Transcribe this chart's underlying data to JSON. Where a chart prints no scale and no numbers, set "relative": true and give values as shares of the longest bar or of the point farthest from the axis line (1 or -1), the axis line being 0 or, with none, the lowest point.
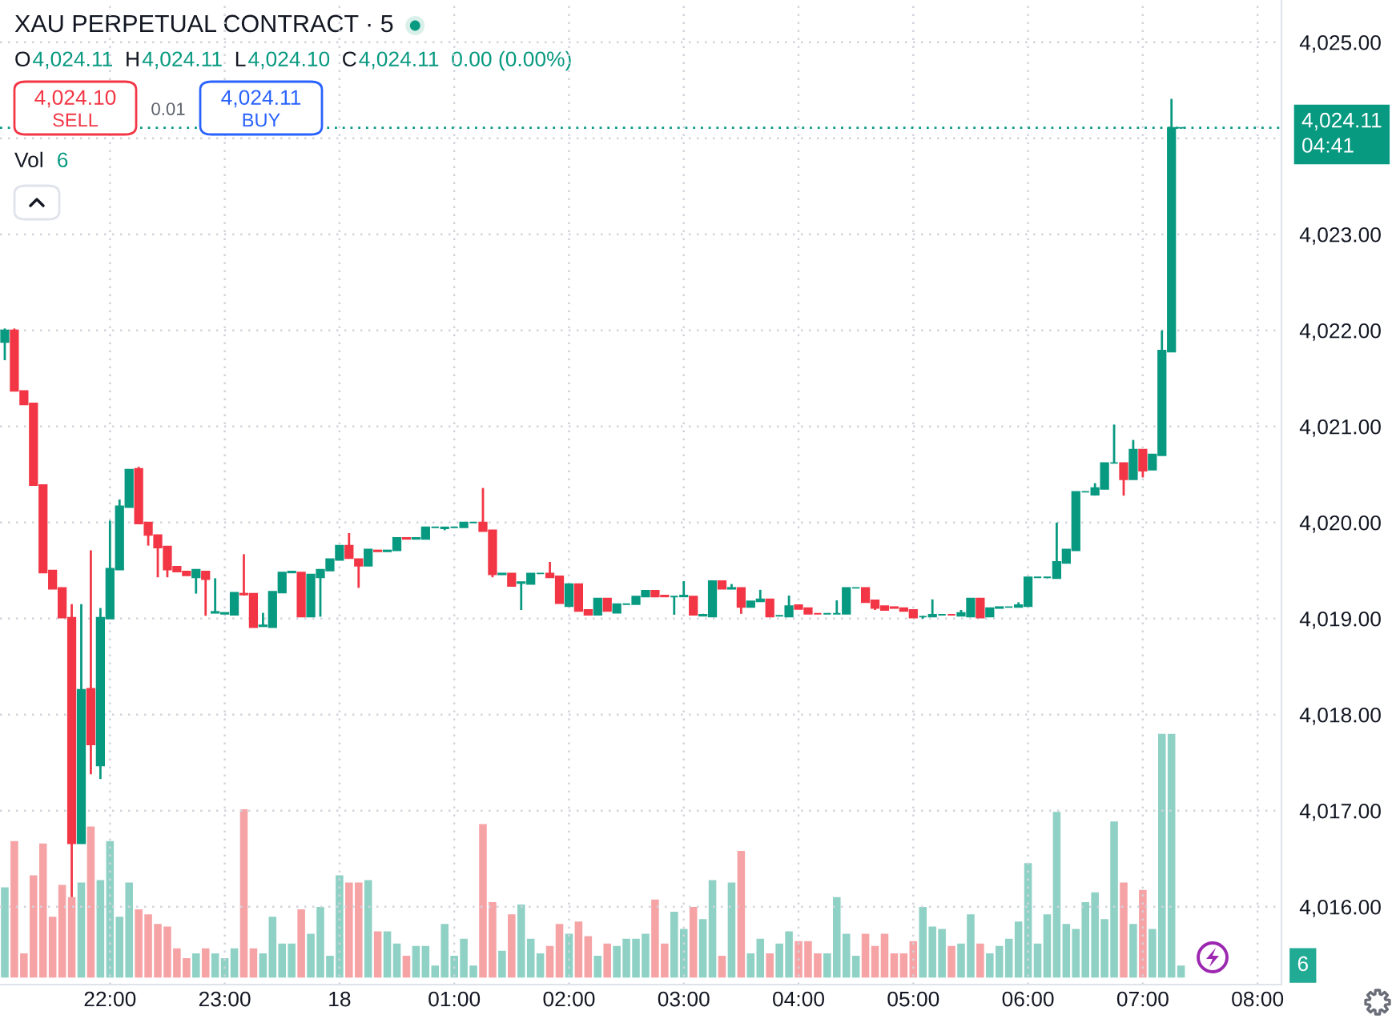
{
  "chart_data": [
    {
      "type": "candlestick",
      "title": "XAU PERPETUAL CONTRACT · 5",
      "categories": [
        null,
        null,
        null,
        null,
        null,
        null,
        null,
        null,
        null,
        null,
        null,
        "22:00",
        null,
        null,
        null,
        null,
        null,
        null,
        null,
        null,
        null,
        null,
        null,
        "23:00",
        null,
        null,
        null,
        null,
        null,
        null,
        null,
        null,
        null,
        null,
        null,
        "18",
        null,
        null,
        null,
        null,
        null,
        null,
        null,
        null,
        null,
        null,
        null,
        "01:00",
        null,
        null,
        null,
        null,
        null,
        null,
        null,
        null,
        null,
        null,
        null,
        "02:00",
        null,
        null,
        null,
        null,
        null,
        null,
        null,
        null,
        null,
        null,
        null,
        "03:00",
        null,
        null,
        null,
        null,
        null,
        null,
        null,
        null,
        null,
        null,
        null,
        "04:00",
        null,
        null,
        null,
        null,
        null,
        null,
        null,
        null,
        null,
        null,
        null,
        "05:00",
        null,
        null,
        null,
        null,
        null,
        null,
        null,
        null,
        null,
        null,
        null,
        "06:00",
        null,
        null,
        null,
        null,
        null,
        null,
        null,
        null,
        null,
        null,
        null,
        "07:00",
        null,
        null,
        null,
        null,
        null,
        null,
        null,
        null,
        null,
        null,
        null,
        "08:00",
        null,
        null
      ],
      "ohlc": [
        [
          4021.88,
          4022.02,
          4021.69,
          4022.0
        ],
        [
          4022.0,
          4022.02,
          4021.37,
          4021.37
        ],
        [
          4021.37,
          4021.37,
          4021.23,
          4021.23
        ],
        [
          4021.24,
          4021.24,
          4020.39,
          4020.39
        ],
        [
          4020.39,
          4020.39,
          4019.48,
          4019.48
        ],
        [
          4019.5,
          4019.5,
          4019.31,
          4019.31
        ],
        [
          4019.32,
          4019.32,
          4019.01,
          4019.01
        ],
        [
          4019.01,
          4019.15,
          4016.1,
          4016.66
        ],
        [
          4016.66,
          4019.15,
          4016.66,
          4018.26
        ],
        [
          4018.27,
          4019.71,
          4017.38,
          4017.69
        ],
        [
          4017.47,
          4019.11,
          4017.33,
          4019.01
        ],
        [
          4019.0,
          4020.02,
          4019.0,
          4019.52
        ],
        [
          4019.51,
          4020.24,
          4019.51,
          4020.17
        ],
        [
          4020.16,
          4020.55,
          4020.16,
          4020.55
        ],
        [
          4020.56,
          4020.58,
          4019.99,
          4019.99
        ],
        [
          4020.0,
          4020.0,
          4019.76,
          4019.87
        ],
        [
          4019.87,
          4019.87,
          4019.43,
          4019.74
        ],
        [
          4019.75,
          4019.75,
          4019.43,
          4019.51
        ],
        [
          4019.54,
          4019.54,
          4019.49,
          4019.49
        ],
        [
          4019.49,
          4019.49,
          4019.45,
          4019.45
        ],
        [
          4019.43,
          4019.51,
          4019.26,
          4019.51
        ],
        [
          4019.49,
          4019.49,
          4019.03,
          4019.41
        ],
        [
          4019.06,
          4019.42,
          4019.06,
          4019.07
        ],
        [
          4019.05,
          4019.06,
          4019.05,
          4019.06
        ],
        [
          4019.04,
          4019.27,
          4019.04,
          4019.27
        ],
        [
          4019.26,
          4019.67,
          4019.24,
          4019.25
        ],
        [
          4019.26,
          4019.26,
          4018.91,
          4018.91
        ],
        [
          4018.92,
          4019.06,
          4018.92,
          4018.93
        ],
        [
          4018.91,
          4019.28,
          4018.91,
          4019.28
        ],
        [
          4019.27,
          4019.48,
          4019.27,
          4019.48
        ],
        [
          4019.48,
          4019.49,
          4019.48,
          4019.49
        ],
        [
          4019.48,
          4019.48,
          4019.02,
          4019.02
        ],
        [
          4019.02,
          4019.46,
          4019.02,
          4019.46
        ],
        [
          4019.43,
          4019.51,
          4019.02,
          4019.51
        ],
        [
          4019.5,
          4019.62,
          4019.5,
          4019.62
        ],
        [
          4019.61,
          4019.76,
          4019.61,
          4019.76
        ],
        [
          4019.76,
          4019.89,
          4019.63,
          4019.63
        ],
        [
          4019.62,
          4019.62,
          4019.32,
          4019.55
        ],
        [
          4019.55,
          4019.72,
          4019.55,
          4019.72
        ],
        [
          4019.71,
          4019.71,
          4019.7,
          4019.7
        ],
        [
          4019.7,
          4019.71,
          4019.7,
          4019.71
        ],
        [
          4019.71,
          4019.84,
          4019.71,
          4019.84
        ],
        [
          4019.84,
          4019.84,
          4019.83,
          4019.83
        ],
        [
          4019.83,
          4019.84,
          4019.83,
          4019.84
        ],
        [
          4019.83,
          4019.95,
          4019.83,
          4019.95
        ],
        [
          4019.95,
          4019.95,
          4019.95,
          4019.95
        ],
        [
          4019.94,
          4019.95,
          4019.92,
          4019.95
        ],
        [
          4019.95,
          4019.95,
          4019.95,
          4019.95
        ],
        [
          4019.95,
          4020.0,
          4019.95,
          4020.0
        ],
        [
          4020.0,
          4020.0,
          4020.0,
          4020.0
        ],
        [
          4020.0,
          4020.36,
          4019.91,
          4019.91
        ],
        [
          4019.92,
          4019.92,
          4019.43,
          4019.46
        ],
        [
          4019.46,
          4019.47,
          4019.46,
          4019.47
        ],
        [
          4019.47,
          4019.47,
          4019.34,
          4019.34
        ],
        [
          4019.37,
          4019.38,
          4019.09,
          4019.38
        ],
        [
          4019.36,
          4019.47,
          4019.36,
          4019.47
        ],
        [
          4019.47,
          4019.47,
          4019.47,
          4019.47
        ],
        [
          4019.47,
          4019.59,
          4019.43,
          4019.43
        ],
        [
          4019.44,
          4019.44,
          4019.16,
          4019.16
        ],
        [
          4019.13,
          4019.36,
          4019.13,
          4019.36
        ],
        [
          4019.36,
          4019.36,
          4019.08,
          4019.08
        ],
        [
          4019.09,
          4019.09,
          4019.04,
          4019.04
        ],
        [
          4019.04,
          4019.21,
          4019.04,
          4019.21
        ],
        [
          4019.21,
          4019.21,
          4019.08,
          4019.08
        ],
        [
          4019.06,
          4019.15,
          4019.06,
          4019.15
        ],
        [
          4019.15,
          4019.15,
          4019.15,
          4019.15
        ],
        [
          4019.15,
          4019.23,
          4019.15,
          4019.23
        ],
        [
          4019.23,
          4019.29,
          4019.23,
          4019.29
        ],
        [
          4019.29,
          4019.29,
          4019.23,
          4019.23
        ],
        [
          4019.24,
          4019.24,
          4019.23,
          4019.23
        ],
        [
          4019.23,
          4019.23,
          4019.04,
          4019.23
        ],
        [
          4019.23,
          4019.39,
          4019.23,
          4019.24
        ],
        [
          4019.23,
          4019.23,
          4019.04,
          4019.04
        ],
        [
          4019.03,
          4019.05,
          4019.03,
          4019.04
        ],
        [
          4019.02,
          4019.39,
          4019.02,
          4019.39
        ],
        [
          4019.39,
          4019.39,
          4019.31,
          4019.31
        ],
        [
          4019.31,
          4019.36,
          4019.31,
          4019.32
        ],
        [
          4019.32,
          4019.32,
          4019.05,
          4019.12
        ],
        [
          4019.12,
          4019.18,
          4019.12,
          4019.18
        ],
        [
          4019.18,
          4019.3,
          4019.18,
          4019.2
        ],
        [
          4019.2,
          4019.2,
          4019.02,
          4019.02
        ],
        [
          4019.03,
          4019.03,
          4019.03,
          4019.03
        ],
        [
          4019.02,
          4019.24,
          4019.02,
          4019.13
        ],
        [
          4019.14,
          4019.14,
          4019.1,
          4019.1
        ],
        [
          4019.11,
          4019.11,
          4019.05,
          4019.05
        ],
        [
          4019.05,
          4019.05,
          4019.05,
          4019.05
        ],
        [
          4019.05,
          4019.05,
          4019.05,
          4019.05
        ],
        [
          4019.05,
          4019.19,
          4019.05,
          4019.05
        ],
        [
          4019.05,
          4019.32,
          4019.05,
          4019.32
        ],
        [
          4019.32,
          4019.32,
          4019.32,
          4019.32
        ],
        [
          4019.32,
          4019.32,
          4019.17,
          4019.17
        ],
        [
          4019.19,
          4019.19,
          4019.09,
          4019.11
        ],
        [
          4019.13,
          4019.13,
          4019.09,
          4019.09
        ],
        [
          4019.12,
          4019.12,
          4019.11,
          4019.11
        ],
        [
          4019.11,
          4019.11,
          4019.08,
          4019.08
        ],
        [
          4019.09,
          4019.09,
          4019.01,
          4019.01
        ],
        [
          4019.02,
          4019.03,
          4019.0,
          4019.02
        ],
        [
          4019.02,
          4019.2,
          4019.02,
          4019.04
        ],
        [
          4019.04,
          4019.04,
          4019.04,
          4019.04
        ],
        [
          4019.04,
          4019.04,
          4019.04,
          4019.04
        ],
        [
          4019.03,
          4019.09,
          4019.03,
          4019.06
        ],
        [
          4019.02,
          4019.21,
          4019.02,
          4019.21
        ],
        [
          4019.21,
          4019.21,
          4019.01,
          4019.01
        ],
        [
          4019.02,
          4019.11,
          4019.02,
          4019.11
        ],
        [
          4019.11,
          4019.12,
          4019.11,
          4019.12
        ],
        [
          4019.12,
          4019.12,
          4019.12,
          4019.12
        ],
        [
          4019.12,
          4019.17,
          4019.12,
          4019.14
        ],
        [
          4019.13,
          4019.43,
          4019.13,
          4019.43
        ],
        [
          4019.43,
          4019.43,
          4019.43,
          4019.43
        ],
        [
          4019.43,
          4019.43,
          4019.42,
          4019.43
        ],
        [
          4019.42,
          4020.0,
          4019.42,
          4019.59
        ],
        [
          4019.58,
          4019.72,
          4019.58,
          4019.72
        ],
        [
          4019.71,
          4020.32,
          4019.71,
          4020.32
        ],
        [
          4020.32,
          4020.32,
          4020.32,
          4020.32
        ],
        [
          4020.29,
          4020.41,
          4020.28,
          4020.36
        ],
        [
          4020.35,
          4020.62,
          4020.35,
          4020.62
        ],
        [
          4020.62,
          4021.02,
          4020.62,
          4020.62
        ],
        [
          4020.62,
          4020.62,
          4020.28,
          4020.45
        ],
        [
          4020.45,
          4020.86,
          4020.45,
          4020.76
        ],
        [
          4020.76,
          4020.76,
          4020.47,
          4020.54
        ],
        [
          4020.55,
          4020.71,
          4020.55,
          4020.71
        ],
        [
          4020.7,
          4022.0,
          4020.7,
          4021.79
        ],
        [
          4021.78,
          4024.41,
          4021.78,
          4024.11
        ],
        [
          4024.11,
          4024.11,
          4024.1,
          4024.11
        ],
        null,
        null,
        null,
        null,
        null,
        null,
        null,
        null,
        null,
        null
      ],
      "colors": [
        "#089981",
        "#f23645",
        "#f23645",
        "#f23645",
        "#f23645",
        "#f23645",
        "#f23645",
        "#f23645",
        "#089981",
        "#f23645",
        "#089981",
        "#089981",
        "#089981",
        "#089981",
        "#f23645",
        "#f23645",
        "#f23645",
        "#f23645",
        "#f23645",
        "#f23645",
        "#089981",
        "#f23645",
        "#089981",
        "#089981",
        "#089981",
        "#f23645",
        "#f23645",
        "#089981",
        "#089981",
        "#089981",
        "#089981",
        "#f23645",
        "#089981",
        "#089981",
        "#089981",
        "#089981",
        "#f23645",
        "#f23645",
        "#089981",
        "#f23645",
        "#089981",
        "#089981",
        "#f23645",
        "#089981",
        "#089981",
        "#089981",
        "#089981",
        "#089981",
        "#089981",
        "#089981",
        "#f23645",
        "#f23645",
        "#089981",
        "#f23645",
        "#089981",
        "#089981",
        "#089981",
        "#f23645",
        "#f23645",
        "#089981",
        "#f23645",
        "#f23645",
        "#089981",
        "#f23645",
        "#089981",
        "#089981",
        "#089981",
        "#089981",
        "#f23645",
        "#f23645",
        "#089981",
        "#089981",
        "#f23645",
        "#089981",
        "#089981",
        "#f23645",
        "#089981",
        "#f23645",
        "#089981",
        "#089981",
        "#f23645",
        "#089981",
        "#089981",
        "#f23645",
        "#f23645",
        "#f23645",
        "#089981",
        "#089981",
        "#089981",
        "#089981",
        "#f23645",
        "#f23645",
        "#f23645",
        "#f23645",
        "#f23645",
        "#f23645",
        "#089981",
        "#089981",
        "#089981",
        "#f23645",
        "#089981",
        "#089981",
        "#f23645",
        "#089981",
        "#089981",
        "#089981",
        "#089981",
        "#089981",
        "#089981",
        "#089981",
        "#089981",
        "#089981",
        "#089981",
        "#089981",
        "#089981",
        "#089981",
        "#089981",
        "#f23645",
        "#089981",
        "#f23645",
        "#089981",
        "#089981",
        "#089981",
        "#089981",
        null,
        null,
        null,
        null,
        null,
        null,
        null,
        null,
        null,
        null
      ],
      "ylim": [
        4015.19,
        4025.44
      ],
      "yticks": [
        {
          "value": 4016,
          "label": "4,016.00"
        },
        {
          "value": 4017,
          "label": "4,017.00"
        },
        {
          "value": 4018,
          "label": "4,018.00"
        },
        {
          "value": 4019,
          "label": "4,019.00"
        },
        {
          "value": 4020,
          "label": "4,020.00"
        },
        {
          "value": 4021,
          "label": "4,021.00"
        },
        {
          "value": 4022,
          "label": "4,022.00"
        },
        {
          "value": 4023,
          "label": "4,023.00"
        },
        {
          "value": 4024,
          "label": null
        },
        {
          "value": 4025,
          "label": "4,025.00"
        }
      ],
      "grid": true,
      "ref_lines": [
        {
          "axis": "y",
          "value": 4024.11,
          "label": "4,024.11\n04:41",
          "color": "#089981",
          "line_style": "dotted"
        }
      ],
      "annotations": [
        "O",
        "4,024.11",
        "H",
        "4,024.11",
        "L",
        "4,024.10",
        "C",
        "4,024.11",
        "0.00 (0.00%)",
        "4,024.10",
        "SELL",
        "0.01",
        "4,024.11",
        "BUY"
      ]
    },
    {
      "type": "bar",
      "relative": true,
      "title": "Vol",
      "categories": [
        null,
        null,
        null,
        null,
        null,
        null,
        null,
        null,
        null,
        null,
        null,
        null,
        null,
        null,
        null,
        null,
        null,
        null,
        null,
        null,
        null,
        null,
        null,
        null,
        null,
        null,
        null,
        null,
        null,
        null,
        null,
        null,
        null,
        null,
        null,
        null,
        null,
        null,
        null,
        null,
        null,
        null,
        null,
        null,
        null,
        null,
        null,
        null,
        null,
        null,
        null,
        null,
        null,
        null,
        null,
        null,
        null,
        null,
        null,
        null,
        null,
        null,
        null,
        null,
        null,
        null,
        null,
        null,
        null,
        null,
        null,
        null,
        null,
        null,
        null,
        null,
        null,
        null,
        null,
        null,
        null,
        null,
        null,
        null,
        null,
        null,
        null,
        null,
        null,
        null,
        null,
        null,
        null,
        null,
        null,
        null,
        null,
        null,
        null,
        null,
        null,
        null,
        null,
        null,
        null,
        null,
        null,
        null,
        null,
        null,
        null,
        null,
        null,
        null,
        null,
        null,
        null,
        null,
        null,
        null,
        null,
        null,
        null,
        null,
        null,
        null,
        null,
        null,
        null,
        null,
        null,
        null,
        null,
        null
      ],
      "values": [
        0.37,
        0.56,
        0.1,
        0.42,
        0.55,
        0.25,
        0.38,
        0.33,
        0.39,
        0.62,
        0.4,
        0.56,
        0.25,
        0.39,
        0.28,
        0.26,
        0.22,
        0.21,
        0.12,
        0.08,
        0.1,
        0.12,
        0.1,
        0.08,
        0.12,
        0.69,
        0.12,
        0.1,
        0.25,
        0.14,
        0.14,
        0.28,
        0.18,
        0.29,
        0.09,
        0.42,
        0.39,
        0.39,
        0.4,
        0.19,
        0.19,
        0.14,
        0.09,
        0.13,
        0.13,
        0.05,
        0.22,
        0.09,
        0.16,
        0.05,
        0.63,
        0.31,
        0.11,
        0.26,
        0.3,
        0.16,
        0.1,
        0.13,
        0.22,
        0.18,
        0.23,
        0.17,
        0.09,
        0.14,
        0.13,
        0.16,
        0.16,
        0.18,
        0.32,
        0.14,
        0.27,
        0.2,
        0.29,
        0.24,
        0.4,
        0.09,
        0.39,
        0.52,
        0.1,
        0.16,
        0.1,
        0.14,
        0.19,
        0.15,
        0.15,
        0.1,
        0.1,
        0.33,
        0.18,
        0.09,
        0.18,
        0.13,
        0.18,
        0.1,
        0.1,
        0.15,
        0.29,
        0.21,
        0.2,
        0.13,
        0.14,
        0.26,
        0.14,
        0.1,
        0.13,
        0.16,
        0.23,
        0.47,
        0.14,
        0.26,
        0.68,
        0.22,
        0.2,
        0.31,
        0.35,
        0.24,
        0.64,
        0.39,
        0.22,
        0.36,
        0.2,
        1,
        1,
        0.05,
        null,
        null,
        null,
        null,
        null,
        null,
        null,
        null,
        null,
        null
      ],
      "colors": [
        "#8fd1c5",
        "#f6a3a6",
        "#f6a3a6",
        "#f6a3a6",
        "#f6a3a6",
        "#f6a3a6",
        "#f6a3a6",
        "#f6a3a6",
        "#8fd1c5",
        "#f6a3a6",
        "#8fd1c5",
        "#8fd1c5",
        "#8fd1c5",
        "#8fd1c5",
        "#f6a3a6",
        "#f6a3a6",
        "#f6a3a6",
        "#f6a3a6",
        "#f6a3a6",
        "#f6a3a6",
        "#8fd1c5",
        "#f6a3a6",
        "#8fd1c5",
        "#8fd1c5",
        "#8fd1c5",
        "#f6a3a6",
        "#f6a3a6",
        "#8fd1c5",
        "#8fd1c5",
        "#8fd1c5",
        "#8fd1c5",
        "#f6a3a6",
        "#8fd1c5",
        "#8fd1c5",
        "#8fd1c5",
        "#8fd1c5",
        "#f6a3a6",
        "#f6a3a6",
        "#8fd1c5",
        "#f6a3a6",
        "#8fd1c5",
        "#8fd1c5",
        "#f6a3a6",
        "#8fd1c5",
        "#8fd1c5",
        "#8fd1c5",
        "#8fd1c5",
        "#8fd1c5",
        "#8fd1c5",
        "#8fd1c5",
        "#f6a3a6",
        "#f6a3a6",
        "#8fd1c5",
        "#f6a3a6",
        "#8fd1c5",
        "#8fd1c5",
        "#8fd1c5",
        "#f6a3a6",
        "#f6a3a6",
        "#8fd1c5",
        "#f6a3a6",
        "#f6a3a6",
        "#8fd1c5",
        "#f6a3a6",
        "#8fd1c5",
        "#8fd1c5",
        "#8fd1c5",
        "#8fd1c5",
        "#f6a3a6",
        "#f6a3a6",
        "#8fd1c5",
        "#8fd1c5",
        "#f6a3a6",
        "#8fd1c5",
        "#8fd1c5",
        "#f6a3a6",
        "#8fd1c5",
        "#f6a3a6",
        "#8fd1c5",
        "#8fd1c5",
        "#f6a3a6",
        "#8fd1c5",
        "#8fd1c5",
        "#f6a3a6",
        "#f6a3a6",
        "#f6a3a6",
        "#8fd1c5",
        "#8fd1c5",
        "#8fd1c5",
        "#8fd1c5",
        "#f6a3a6",
        "#f6a3a6",
        "#f6a3a6",
        "#f6a3a6",
        "#f6a3a6",
        "#f6a3a6",
        "#8fd1c5",
        "#8fd1c5",
        "#8fd1c5",
        "#f6a3a6",
        "#8fd1c5",
        "#8fd1c5",
        "#f6a3a6",
        "#8fd1c5",
        "#8fd1c5",
        "#8fd1c5",
        "#8fd1c5",
        "#8fd1c5",
        "#8fd1c5",
        "#8fd1c5",
        "#8fd1c5",
        "#8fd1c5",
        "#8fd1c5",
        "#8fd1c5",
        "#8fd1c5",
        "#8fd1c5",
        "#8fd1c5",
        "#f6a3a6",
        "#8fd1c5",
        "#f6a3a6",
        "#8fd1c5",
        "#8fd1c5",
        "#8fd1c5",
        "#8fd1c5",
        null,
        null,
        null,
        null,
        null,
        null,
        null,
        null,
        null,
        null
      ],
      "annotations": [
        "6",
        "6"
      ]
    }
  ]
}
